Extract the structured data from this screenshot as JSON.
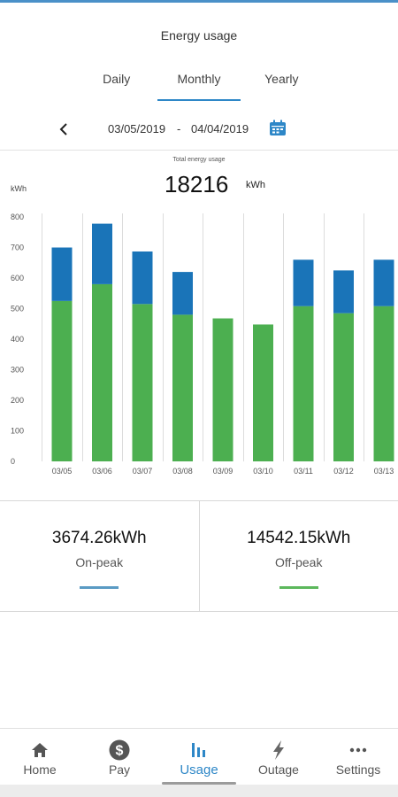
{
  "header": {
    "title": "Energy usage"
  },
  "tabs": [
    {
      "label": "Daily",
      "active": false
    },
    {
      "label": "Monthly",
      "active": true
    },
    {
      "label": "Yearly",
      "active": false
    }
  ],
  "date_range": {
    "start": "03/05/2019",
    "separator": "-",
    "end": "04/04/2019"
  },
  "total": {
    "caption": "Total energy usage",
    "value": "18216",
    "unit": "kWh"
  },
  "chart_data": {
    "type": "bar",
    "stacked": true,
    "ylabel": "kWh",
    "ylim": [
      0,
      800
    ],
    "yticks": [
      0,
      100,
      200,
      300,
      400,
      500,
      600,
      700,
      800
    ],
    "grid": true,
    "categories": [
      "03/05",
      "03/06",
      "03/07",
      "03/08",
      "03/09",
      "03/10",
      "03/11",
      "03/12",
      "03/13"
    ],
    "series": [
      {
        "color": "#4caf50",
        "values": [
          525,
          580,
          515,
          480,
          468,
          448,
          508,
          485,
          508
        ]
      },
      {
        "color": "#1a74b8",
        "values": [
          175,
          198,
          172,
          140,
          0,
          0,
          152,
          140,
          152
        ]
      }
    ]
  },
  "summary": {
    "on_peak": {
      "value": "3674.26kWh",
      "label": "On-peak",
      "color": "#5a9bc4"
    },
    "off_peak": {
      "value": "14542.15kWh",
      "label": "Off-peak",
      "color": "#5cb85c"
    }
  },
  "nav": [
    {
      "label": "Home",
      "icon": "home-icon",
      "active": false
    },
    {
      "label": "Pay",
      "icon": "dollar-icon",
      "active": false
    },
    {
      "label": "Usage",
      "icon": "bar-chart-icon",
      "active": true
    },
    {
      "label": "Outage",
      "icon": "lightning-icon",
      "active": false
    },
    {
      "label": "Settings",
      "icon": "more-icon",
      "active": false
    }
  ],
  "colors": {
    "accent": "#2e87c7",
    "on_peak_bar": "#1a74b8",
    "off_peak_bar": "#4caf50"
  }
}
